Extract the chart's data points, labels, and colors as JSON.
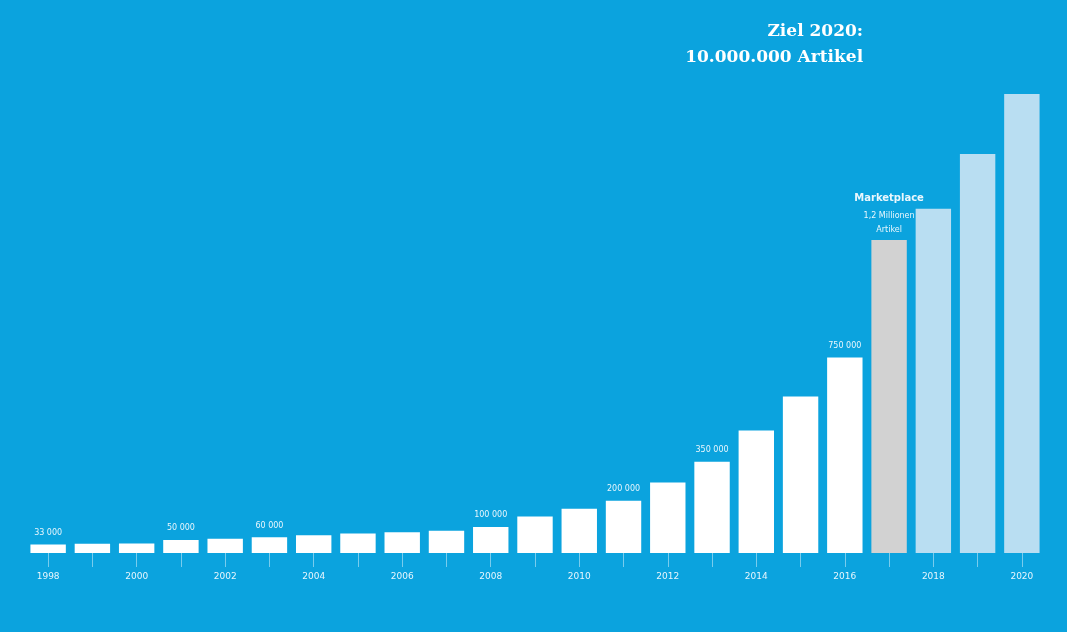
{
  "chart_data": {
    "type": "bar",
    "title": "Ziel 2020:\n10.000.000 Artikel",
    "categories": [
      "1998",
      null,
      "2000",
      null,
      "2002",
      null,
      "2004",
      null,
      "2006",
      null,
      "2008",
      null,
      "2010",
      null,
      "2012",
      null,
      "2014",
      null,
      "2016",
      null,
      "2018",
      null,
      "2020"
    ],
    "values": [
      33000,
      35000,
      36000,
      50000,
      55000,
      60000,
      68000,
      75000,
      80000,
      85000,
      100000,
      140000,
      170000,
      200000,
      270000,
      350000,
      470000,
      600000,
      750000,
      1200000,
      1320000,
      1530000,
      1760000
    ],
    "colors": [
      "#ffffff",
      "#ffffff",
      "#ffffff",
      "#ffffff",
      "#ffffff",
      "#ffffff",
      "#ffffff",
      "#ffffff",
      "#ffffff",
      "#ffffff",
      "#ffffff",
      "#ffffff",
      "#ffffff",
      "#ffffff",
      "#ffffff",
      "#ffffff",
      "#ffffff",
      "#ffffff",
      "#ffffff",
      "#d2d2d2",
      "#b9def2",
      "#b9def2",
      "#b9def2"
    ],
    "value_labels": [
      "33 000",
      null,
      null,
      "50 000",
      null,
      "60 000",
      null,
      null,
      null,
      null,
      "100 000",
      null,
      null,
      "200 000",
      null,
      "350 000",
      null,
      null,
      "750 000",
      null,
      null,
      null,
      null
    ],
    "annotations": [
      "Marketplace",
      "1,2 Millionen\nArtikel"
    ],
    "tick_labels": "x"
  }
}
